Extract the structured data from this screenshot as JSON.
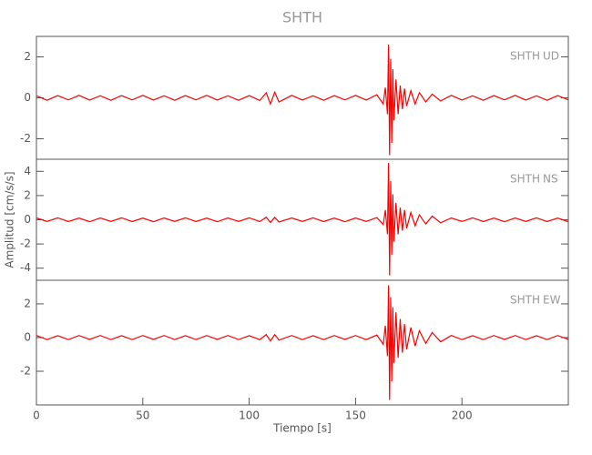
{
  "chart_data": [
    {
      "type": "line",
      "title": "SHTH",
      "station": "SHTH",
      "component": "UD",
      "xlim": [
        0,
        250
      ],
      "ylim": [
        -3,
        3
      ],
      "yticks": [
        -2,
        0,
        2
      ],
      "grid": false,
      "series": [
        {
          "color": "#ff0000",
          "x": [
            0,
            5,
            10,
            15,
            20,
            25,
            30,
            35,
            40,
            45,
            50,
            55,
            60,
            65,
            70,
            75,
            80,
            85,
            90,
            95,
            100,
            105,
            108,
            110,
            112,
            114,
            120,
            125,
            130,
            135,
            140,
            145,
            150,
            155,
            160,
            163,
            164,
            165,
            165.5,
            166,
            166.5,
            167,
            167.5,
            168,
            169,
            170,
            171,
            172,
            173,
            174,
            176,
            178,
            180,
            183,
            186,
            190,
            195,
            200,
            205,
            210,
            215,
            220,
            225,
            230,
            235,
            240,
            245,
            250
          ],
          "values": [
            0.1,
            -0.12,
            0.11,
            -0.1,
            0.12,
            -0.11,
            0.1,
            -0.12,
            0.11,
            -0.1,
            0.12,
            -0.11,
            0.1,
            -0.12,
            0.11,
            -0.1,
            0.12,
            -0.11,
            0.1,
            -0.12,
            0.11,
            -0.13,
            0.25,
            -0.3,
            0.28,
            -0.2,
            0.12,
            -0.11,
            0.1,
            -0.12,
            0.11,
            -0.1,
            0.12,
            -0.11,
            0.15,
            -0.3,
            0.5,
            -0.8,
            2.6,
            -2.8,
            1.9,
            -2.2,
            1.4,
            -1.1,
            0.9,
            -0.8,
            0.6,
            -0.55,
            0.45,
            -0.4,
            0.35,
            -0.3,
            0.25,
            -0.2,
            0.18,
            -0.15,
            0.12,
            -0.11,
            0.1,
            -0.12,
            0.11,
            -0.1,
            0.12,
            -0.11,
            0.1,
            -0.12,
            0.11,
            -0.1
          ]
        }
      ]
    },
    {
      "type": "line",
      "ylabel": "Amplitud [cm/s/s]",
      "station": "SHTH",
      "component": "NS",
      "xlim": [
        0,
        250
      ],
      "ylim": [
        -5,
        5
      ],
      "yticks": [
        -4,
        -2,
        0,
        2,
        4
      ],
      "grid": false,
      "series": [
        {
          "color": "#ff0000",
          "x": [
            0,
            5,
            10,
            15,
            20,
            25,
            30,
            35,
            40,
            45,
            50,
            55,
            60,
            65,
            70,
            75,
            80,
            85,
            90,
            95,
            100,
            105,
            108,
            110,
            112,
            114,
            120,
            125,
            130,
            135,
            140,
            145,
            150,
            155,
            160,
            163,
            164,
            165,
            165.5,
            166,
            166.5,
            167,
            167.5,
            168,
            169,
            170,
            171,
            172,
            173,
            174,
            176,
            178,
            180,
            183,
            186,
            190,
            195,
            200,
            205,
            210,
            215,
            220,
            225,
            230,
            235,
            240,
            245,
            250
          ],
          "values": [
            0.15,
            -0.14,
            0.16,
            -0.15,
            0.14,
            -0.16,
            0.15,
            -0.14,
            0.16,
            -0.15,
            0.14,
            -0.16,
            0.15,
            -0.14,
            0.16,
            -0.15,
            0.14,
            -0.16,
            0.15,
            -0.14,
            0.16,
            -0.15,
            0.2,
            -0.22,
            0.2,
            -0.18,
            0.15,
            -0.14,
            0.16,
            -0.15,
            0.14,
            -0.16,
            0.15,
            -0.14,
            0.18,
            -0.4,
            0.8,
            -1.2,
            4.7,
            -4.6,
            3.2,
            -2.9,
            2.1,
            -1.8,
            1.4,
            -1.2,
            1.0,
            -0.9,
            0.8,
            -0.7,
            0.6,
            -0.5,
            0.4,
            -0.35,
            0.3,
            -0.25,
            0.15,
            -0.14,
            0.16,
            -0.15,
            0.14,
            -0.16,
            0.15,
            -0.14,
            0.16,
            -0.15,
            0.14,
            -0.16
          ]
        }
      ]
    },
    {
      "type": "line",
      "xlabel": "Tiempo [s]",
      "station": "SHTH",
      "component": "EW",
      "xlim": [
        0,
        250
      ],
      "ylim": [
        -4,
        3.4
      ],
      "yticks": [
        -2,
        0,
        2
      ],
      "xticks": [
        0,
        50,
        100,
        150,
        200
      ],
      "grid": false,
      "series": [
        {
          "color": "#ff0000",
          "x": [
            0,
            5,
            10,
            15,
            20,
            25,
            30,
            35,
            40,
            45,
            50,
            55,
            60,
            65,
            70,
            75,
            80,
            85,
            90,
            95,
            100,
            105,
            108,
            110,
            112,
            114,
            120,
            125,
            130,
            135,
            140,
            145,
            150,
            155,
            160,
            163,
            164,
            165,
            165.5,
            166,
            166.5,
            167,
            167.5,
            168,
            169,
            170,
            171,
            172,
            173,
            174,
            176,
            178,
            180,
            183,
            186,
            190,
            195,
            200,
            205,
            210,
            215,
            220,
            225,
            230,
            235,
            240,
            245,
            250
          ],
          "values": [
            0.12,
            -0.12,
            0.11,
            -0.12,
            0.12,
            -0.11,
            0.12,
            -0.12,
            0.11,
            -0.12,
            0.12,
            -0.11,
            0.12,
            -0.12,
            0.11,
            -0.12,
            0.12,
            -0.11,
            0.12,
            -0.12,
            0.11,
            -0.12,
            0.18,
            -0.2,
            0.17,
            -0.15,
            0.12,
            -0.12,
            0.11,
            -0.12,
            0.12,
            -0.11,
            0.12,
            -0.12,
            0.15,
            -0.4,
            0.7,
            -1.1,
            3.1,
            -3.7,
            2.4,
            -2.6,
            1.8,
            -1.5,
            1.5,
            -1.2,
            1.1,
            -0.9,
            0.8,
            -0.7,
            0.6,
            -0.5,
            0.4,
            -0.35,
            0.3,
            -0.25,
            0.12,
            -0.12,
            0.11,
            -0.12,
            0.12,
            -0.11,
            0.12,
            -0.12,
            0.11,
            -0.12,
            0.12,
            -0.11
          ]
        }
      ]
    }
  ]
}
